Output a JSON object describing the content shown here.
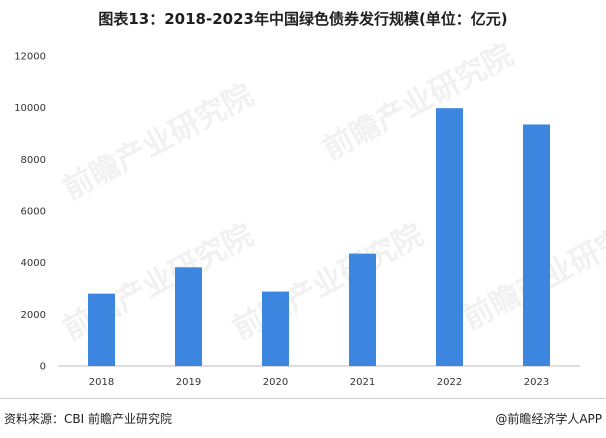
{
  "title": "图表13：2018-2023年中国绿色债券发行规模(单位：亿元)",
  "source": "资料来源：CBI 前瞻产业研究院",
  "brand": "@前瞻经济学人APP",
  "watermark": "前瞻产业研究院",
  "colors": {
    "bar": "#3d86df",
    "axis": "#bdbdbd"
  },
  "chart_data": {
    "type": "bar",
    "categories": [
      "2018",
      "2019",
      "2020",
      "2021",
      "2022",
      "2023"
    ],
    "values": [
      2800,
      3820,
      2880,
      4350,
      9980,
      9350
    ],
    "yticks": [
      "0",
      "2000",
      "4000",
      "6000",
      "8000",
      "10000",
      "12000"
    ],
    "ylim": [
      0,
      12000
    ],
    "grid": false,
    "legend": "none"
  }
}
